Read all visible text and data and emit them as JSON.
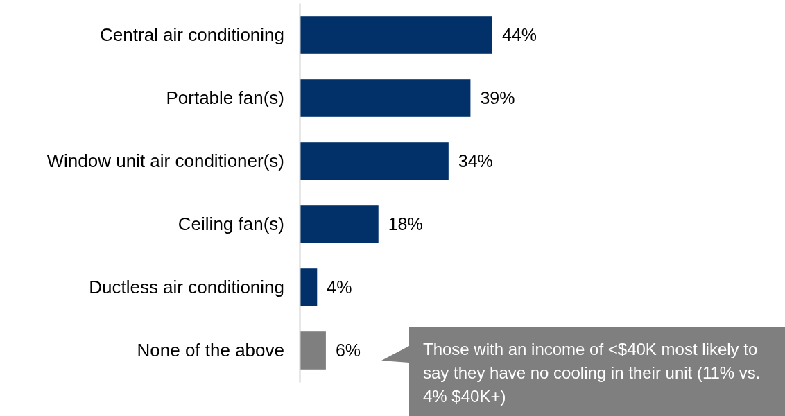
{
  "chart_data": {
    "type": "bar",
    "orientation": "horizontal",
    "categories": [
      "Central air conditioning",
      "Portable fan(s)",
      "Window unit air conditioner(s)",
      "Ceiling fan(s)",
      "Ductless air conditioning",
      "None of the above"
    ],
    "values": [
      44,
      39,
      34,
      18,
      4,
      6
    ],
    "colors": [
      "#02316a",
      "#02316a",
      "#02316a",
      "#02316a",
      "#02316a",
      "#7f7f7f"
    ],
    "value_labels": [
      "44%",
      "39%",
      "34%",
      "18%",
      "4%",
      "6%"
    ],
    "annotations": [
      "Those with an income of <$40K most likely to say they have no cooling in their unit (11% vs. 4% $40K+)"
    ]
  }
}
